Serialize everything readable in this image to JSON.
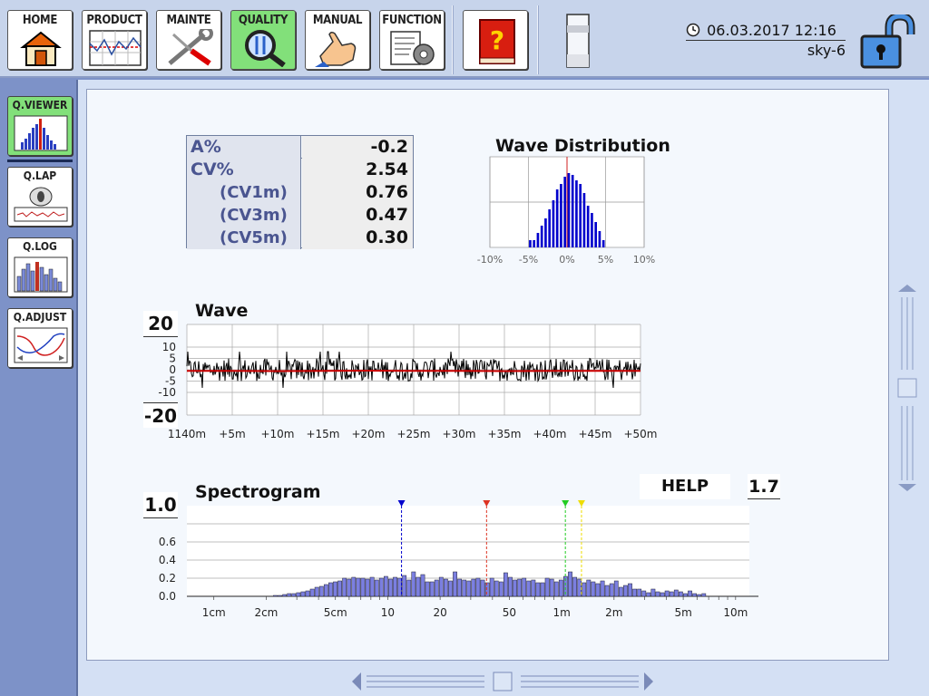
{
  "toolbar": {
    "buttons": [
      {
        "label": "HOME",
        "icon": "house-icon"
      },
      {
        "label": "PRODUCT",
        "icon": "product-chart-icon"
      },
      {
        "label": "MAINTE",
        "icon": "wrench-screwdriver-icon"
      },
      {
        "label": "QUALITY",
        "icon": "magnifier-icon"
      },
      {
        "label": "MANUAL",
        "icon": "hand-pointer-icon"
      },
      {
        "label": "FUNCTION",
        "icon": "document-gear-icon"
      }
    ],
    "help_icon": "help-book-icon",
    "datetime": "06.03.2017 12:16",
    "device": "sky-6",
    "lock_icon": "padlock-unlocked-icon"
  },
  "sidenav": {
    "items": [
      {
        "label": "Q.VIEWER",
        "active": true,
        "icon": "histogram-icon"
      },
      {
        "label": "Q.LAP",
        "icon": "yarn-bobbin-icon"
      },
      {
        "label": "Q.LOG",
        "icon": "log-histogram-icon"
      },
      {
        "label": "Q.ADJUST",
        "icon": "adjust-curves-icon"
      }
    ]
  },
  "stats": [
    {
      "key": "A%",
      "value": "-0.2"
    },
    {
      "key": "CV%",
      "value": "2.54"
    },
    {
      "key": "(CV1m)",
      "value": "0.76"
    },
    {
      "key": "(CV3m)",
      "value": "0.47"
    },
    {
      "key": "(CV5m)",
      "value": "0.30"
    }
  ],
  "help": {
    "label": "HELP",
    "value": "1.7"
  },
  "colors": {
    "accent_active": "#82e07a",
    "bar_fill": "#0000cc",
    "spectro_fill": "#7b7fe0",
    "wave_mean": "#cc0000"
  },
  "chart_data": [
    {
      "type": "bar",
      "title": "Wave Distribution",
      "x_ticks": [
        "-10%",
        "-5%",
        "0%",
        "5%",
        "10%"
      ],
      "xlim": [
        -10,
        10
      ],
      "bin_width": 0.5,
      "x": [
        -5,
        -4.5,
        -4,
        -3.5,
        -3,
        -2.5,
        -2,
        -1.5,
        -1,
        -0.5,
        0,
        0.5,
        1,
        1.5,
        2,
        2.5,
        3,
        3.5,
        4,
        4.5
      ],
      "values": [
        0.08,
        0.08,
        0.16,
        0.24,
        0.32,
        0.42,
        0.52,
        0.64,
        0.7,
        0.78,
        0.82,
        0.8,
        0.74,
        0.7,
        0.6,
        0.46,
        0.38,
        0.28,
        0.18,
        0.08
      ],
      "center_line": 0
    },
    {
      "type": "line",
      "title": "Wave",
      "scale": "20",
      "y_ticks": [
        "10",
        "5",
        "0",
        "-5",
        "-10"
      ],
      "ylim": [
        -20,
        20
      ],
      "x_ticks": [
        "1140m",
        "+5m",
        "+10m",
        "+15m",
        "+20m",
        "+25m",
        "+30m",
        "+35m",
        "+40m",
        "+45m",
        "+50m"
      ],
      "series": [
        {
          "amplitude_typical": 5,
          "amplitude_peak": 8
        },
        {
          "values": [
            -0.5,
            -0.5,
            -0.6,
            -0.5,
            -0.4,
            -0.5,
            -0.5,
            -0.6,
            -0.5,
            -0.5,
            -0.5
          ]
        }
      ]
    },
    {
      "type": "bar",
      "title": "Spectrogram",
      "scale": "1.0",
      "y_ticks": [
        "0.6",
        "0.4",
        "0.2",
        "0.0"
      ],
      "ylim": [
        0,
        1.0
      ],
      "x_ticks": [
        "1cm",
        "2cm",
        "5cm",
        "10",
        "20",
        "50",
        "1m",
        "2m",
        "5m",
        "10m"
      ],
      "x_scale": "log",
      "values": [
        0.01,
        0.01,
        0.02,
        0.03,
        0.03,
        0.04,
        0.05,
        0.06,
        0.08,
        0.1,
        0.11,
        0.13,
        0.15,
        0.16,
        0.17,
        0.2,
        0.19,
        0.21,
        0.2,
        0.2,
        0.19,
        0.21,
        0.18,
        0.2,
        0.22,
        0.19,
        0.21,
        0.2,
        0.23,
        0.18,
        0.27,
        0.21,
        0.24,
        0.16,
        0.16,
        0.18,
        0.21,
        0.19,
        0.17,
        0.27,
        0.19,
        0.18,
        0.17,
        0.19,
        0.2,
        0.18,
        0.15,
        0.2,
        0.17,
        0.16,
        0.26,
        0.21,
        0.18,
        0.19,
        0.2,
        0.17,
        0.18,
        0.15,
        0.15,
        0.2,
        0.19,
        0.16,
        0.18,
        0.22,
        0.27,
        0.21,
        0.19,
        0.15,
        0.18,
        0.16,
        0.14,
        0.17,
        0.12,
        0.14,
        0.17,
        0.1,
        0.12,
        0.14,
        0.08,
        0.08,
        0.06,
        0.04,
        0.08,
        0.05,
        0.04,
        0.06,
        0.05,
        0.07,
        0.05,
        0.03,
        0.06,
        0.03,
        0.02,
        0.03
      ],
      "markers": [
        {
          "position": "12cm",
          "color": "#0000cc"
        },
        {
          "position": "37cm",
          "color": "#dd3322"
        },
        {
          "position": "1.05m",
          "color": "#22cc22"
        },
        {
          "position": "1.3m",
          "color": "#eedd00"
        }
      ]
    }
  ]
}
